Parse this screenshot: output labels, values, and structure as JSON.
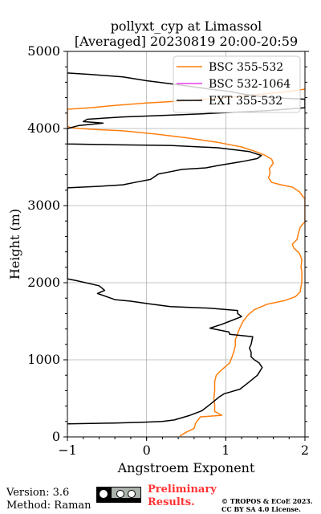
{
  "chart_data": {
    "type": "line",
    "title": "pollyxt_cyp at Limassol",
    "subtitle": "[Averaged] 20230819 20:00-20:59",
    "xlabel": "Angstroem Exponent",
    "ylabel": "Height (m)",
    "xlim": [
      -1,
      2
    ],
    "ylim": [
      0,
      5000
    ],
    "xticks": [
      -1,
      0,
      1,
      2
    ],
    "xtick_labels": [
      "−1",
      "0",
      "1",
      "2"
    ],
    "yticks": [
      0,
      1000,
      2000,
      3000,
      4000,
      5000
    ],
    "ytick_labels": [
      "0",
      "1000",
      "2000",
      "3000",
      "4000",
      "5000"
    ],
    "grid": true,
    "legend_position": "top-right",
    "series": [
      {
        "name": "BSC 355-532",
        "color": "#ff7f0e",
        "points": [
          [
            0.42,
            10
          ],
          [
            0.5,
            60
          ],
          [
            0.6,
            110
          ],
          [
            0.62,
            180
          ],
          [
            0.68,
            260
          ],
          [
            0.95,
            280
          ],
          [
            0.86,
            330
          ],
          [
            0.86,
            420
          ],
          [
            0.85,
            500
          ],
          [
            0.86,
            600
          ],
          [
            0.86,
            720
          ],
          [
            0.88,
            800
          ],
          [
            0.96,
            880
          ],
          [
            1.05,
            960
          ],
          [
            1.08,
            1040
          ],
          [
            1.1,
            1100
          ],
          [
            1.12,
            1180
          ],
          [
            1.12,
            1260
          ],
          [
            1.15,
            1340
          ],
          [
            1.18,
            1420
          ],
          [
            1.22,
            1500
          ],
          [
            1.28,
            1580
          ],
          [
            1.36,
            1650
          ],
          [
            1.52,
            1720
          ],
          [
            1.75,
            1770
          ],
          [
            1.88,
            1820
          ],
          [
            1.94,
            1880
          ],
          [
            1.95,
            1950
          ],
          [
            1.96,
            2000
          ],
          [
            1.96,
            2150
          ],
          [
            1.95,
            2200
          ],
          [
            1.96,
            2300
          ],
          [
            1.93,
            2380
          ],
          [
            1.86,
            2450
          ],
          [
            1.84,
            2500
          ],
          [
            1.9,
            2560
          ],
          [
            1.92,
            2650
          ],
          [
            1.94,
            2720
          ],
          [
            1.98,
            2770
          ],
          [
            2.0,
            2790
          ],
          [
            2.0,
            3090
          ],
          [
            1.98,
            3110
          ],
          [
            1.93,
            3180
          ],
          [
            1.84,
            3240
          ],
          [
            1.7,
            3270
          ],
          [
            1.58,
            3300
          ],
          [
            1.54,
            3360
          ],
          [
            1.56,
            3420
          ],
          [
            1.55,
            3480
          ],
          [
            1.6,
            3550
          ],
          [
            1.58,
            3600
          ],
          [
            1.5,
            3650
          ],
          [
            1.38,
            3700
          ],
          [
            1.2,
            3760
          ],
          [
            0.9,
            3820
          ],
          [
            0.5,
            3880
          ],
          [
            0.1,
            3930
          ],
          [
            -0.3,
            3970
          ],
          [
            -0.7,
            3990
          ],
          [
            -0.96,
            4010
          ],
          [
            -1.0,
            4030
          ],
          [
            -1.0,
            4250
          ],
          [
            -0.7,
            4270
          ],
          [
            -0.4,
            4300
          ],
          [
            0.0,
            4330
          ],
          [
            0.5,
            4360
          ],
          [
            1.0,
            4400
          ],
          [
            1.5,
            4450
          ],
          [
            1.8,
            4480
          ],
          [
            2.0,
            4510
          ]
        ]
      },
      {
        "name": "BSC 532-1064",
        "color": "#e83be8",
        "points": []
      },
      {
        "name": "EXT 355-532",
        "color": "#000000",
        "points": [
          [
            -1.0,
            170
          ],
          [
            -0.4,
            180
          ],
          [
            -0.05,
            190
          ],
          [
            0.2,
            200
          ],
          [
            0.35,
            220
          ],
          [
            0.55,
            280
          ],
          [
            0.7,
            340
          ],
          [
            0.8,
            420
          ],
          [
            0.92,
            520
          ],
          [
            0.98,
            560
          ],
          [
            1.05,
            580
          ],
          [
            1.18,
            620
          ],
          [
            1.28,
            700
          ],
          [
            1.4,
            800
          ],
          [
            1.46,
            900
          ],
          [
            1.42,
            960
          ],
          [
            1.36,
            1000
          ],
          [
            1.32,
            1040
          ],
          [
            1.32,
            1100
          ],
          [
            1.3,
            1150
          ],
          [
            1.31,
            1180
          ],
          [
            1.32,
            1200
          ],
          [
            1.34,
            1300
          ],
          [
            1.05,
            1330
          ],
          [
            1.04,
            1360
          ],
          [
            0.8,
            1410
          ],
          [
            0.95,
            1460
          ],
          [
            1.05,
            1500
          ],
          [
            1.2,
            1560
          ],
          [
            1.15,
            1600
          ],
          [
            1.15,
            1640
          ],
          [
            0.8,
            1670
          ],
          [
            0.3,
            1690
          ],
          [
            0.0,
            1730
          ],
          [
            -0.2,
            1760
          ],
          [
            -0.4,
            1780
          ],
          [
            -0.62,
            1860
          ],
          [
            -0.53,
            1900
          ],
          [
            -0.6,
            1960
          ],
          [
            -0.9,
            2030
          ],
          [
            -1.0,
            2050
          ],
          [
            -1.0,
            3230
          ],
          [
            -0.6,
            3250
          ],
          [
            -0.3,
            3270
          ],
          [
            -0.1,
            3310
          ],
          [
            0.05,
            3340
          ],
          [
            0.15,
            3410
          ],
          [
            0.3,
            3440
          ],
          [
            0.45,
            3470
          ],
          [
            0.75,
            3490
          ],
          [
            0.9,
            3520
          ],
          [
            1.2,
            3570
          ],
          [
            1.4,
            3610
          ],
          [
            1.45,
            3650
          ],
          [
            1.3,
            3700
          ],
          [
            0.9,
            3750
          ],
          [
            0.3,
            3780
          ],
          [
            -0.4,
            3790
          ],
          [
            -1.0,
            3800
          ],
          [
            -1.0,
            4000
          ],
          [
            -0.85,
            4040
          ],
          [
            -0.55,
            4070
          ],
          [
            -0.8,
            4090
          ],
          [
            -0.75,
            4120
          ],
          [
            -0.3,
            4150
          ],
          [
            0.2,
            4170
          ],
          [
            0.7,
            4190
          ],
          [
            1.1,
            4210
          ],
          [
            1.5,
            4230
          ],
          [
            1.9,
            4260
          ],
          [
            2.0,
            4270
          ],
          [
            2.0,
            4380
          ],
          [
            1.8,
            4390
          ],
          [
            1.6,
            4400
          ],
          [
            1.4,
            4420
          ],
          [
            1.2,
            4450
          ],
          [
            1.05,
            4480
          ],
          [
            0.8,
            4510
          ],
          [
            0.6,
            4540
          ],
          [
            0.3,
            4580
          ],
          [
            0.0,
            4620
          ],
          [
            -0.3,
            4670
          ],
          [
            -0.7,
            4700
          ],
          [
            -1.0,
            4720
          ]
        ]
      }
    ]
  },
  "footer": {
    "version": "Version: 3.6",
    "method": "Method: Raman",
    "license_badge_icon": "cc-by-sa-icon",
    "preliminary_line1": "Preliminary",
    "preliminary_line2": "Results.",
    "preliminary_color": "#ff3333",
    "copyright_line1": "© TROPOS & ECoE 2023.",
    "copyright_line2": "CC BY SA 4.0 License."
  }
}
